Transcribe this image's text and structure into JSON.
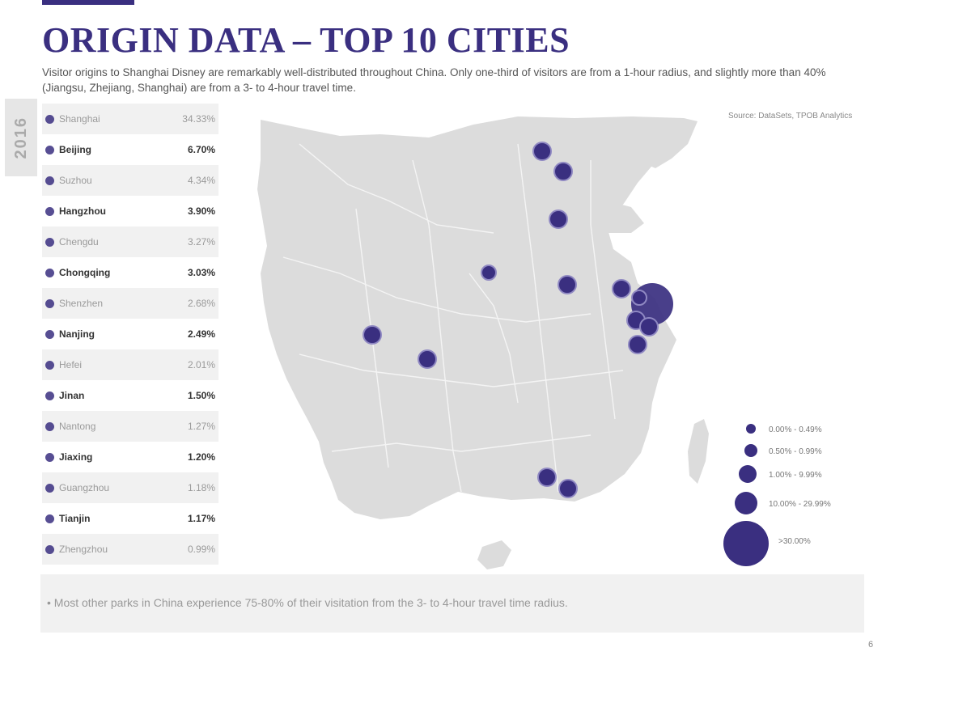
{
  "title": "ORIGIN DATA – TOP 10 CITIES",
  "intro": "Visitor origins to Shanghai Disney are remarkably well-distributed throughout China. Only one-third of visitors are from a 1-hour radius, and slightly more than 40% (Jiangsu, Zhejiang, Shanghai) are from a 3- to 4-hour travel time.",
  "side_tab": "2016",
  "source": "Source: DataSets, TPOB Analytics",
  "cities": [
    {
      "name": "Shanghai",
      "pct": "34.33%"
    },
    {
      "name": "Beijing",
      "pct": "6.70%"
    },
    {
      "name": "Suzhou",
      "pct": "4.34%"
    },
    {
      "name": "Hangzhou",
      "pct": "3.90%"
    },
    {
      "name": "Chengdu",
      "pct": "3.27%"
    },
    {
      "name": "Chongqing",
      "pct": "3.03%"
    },
    {
      "name": "Shenzhen",
      "pct": "2.68%"
    },
    {
      "name": "Nanjing",
      "pct": "2.49%"
    },
    {
      "name": "Hefei",
      "pct": "2.01%"
    },
    {
      "name": "Jinan",
      "pct": "1.50%"
    },
    {
      "name": "Nantong",
      "pct": "1.27%"
    },
    {
      "name": "Jiaxing",
      "pct": "1.20%"
    },
    {
      "name": "Guangzhou",
      "pct": "1.18%"
    },
    {
      "name": "Tianjin",
      "pct": "1.17%"
    },
    {
      "name": "Zhengzhou",
      "pct": "0.99%"
    }
  ],
  "legend": [
    {
      "label": "0.00% - 0.49%",
      "tier": 1
    },
    {
      "label": "0.50% - 0.99%",
      "tier": 2
    },
    {
      "label": "1.00% - 9.99%",
      "tier": 3
    },
    {
      "label": "10.00% - 29.99%",
      "tier": 4
    },
    {
      "label": ">30.00%",
      "tier": 5
    }
  ],
  "colors": {
    "accent": "#3a2f80",
    "land": "#dcdcdc",
    "border": "#f4f4f4"
  },
  "footnote": "• Most other parks in China experience 75-80% of their visitation from the 3- to 4-hour travel time radius.",
  "page_number": "6"
}
